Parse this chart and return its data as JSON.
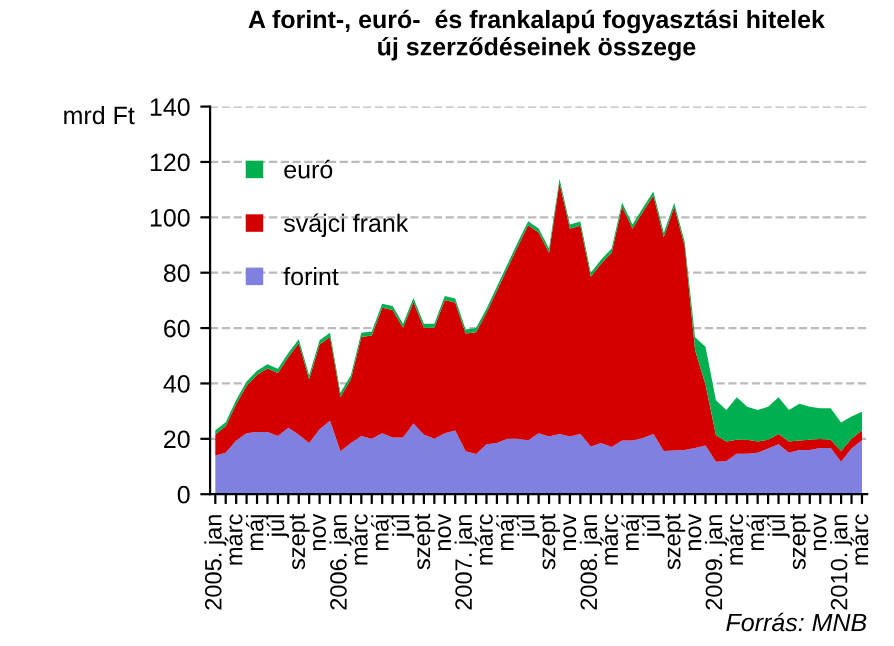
{
  "chart_data": {
    "type": "area",
    "stacked": true,
    "title": "A forint-, euró-  és frankalapú fogyasztási hitelek\núj szerződéseinek összege",
    "ylabel": "mrd Ft",
    "categories": [
      "2005. jan",
      null,
      "márc",
      null,
      "máj",
      null,
      "júl",
      null,
      "szept",
      null,
      "nov",
      null,
      "2006. jan",
      null,
      "márc",
      null,
      "máj",
      null,
      "júl",
      null,
      "szept",
      null,
      "nov",
      null,
      "2007. jan",
      null,
      "márc",
      null,
      "máj",
      null,
      "júl",
      null,
      "szept",
      null,
      "nov",
      null,
      "2008. jan",
      null,
      "márc",
      null,
      "máj",
      null,
      "júl",
      null,
      "szept",
      null,
      "nov",
      null,
      "2009. jan",
      null,
      "márc",
      null,
      "máj",
      null,
      "júl",
      null,
      "szept",
      null,
      "nov",
      null,
      "2010. jan",
      null,
      "márc"
    ],
    "series": [
      {
        "name": "forint",
        "color": "#8080e0",
        "values": [
          14,
          15,
          19.4,
          22,
          22.5,
          22.5,
          21,
          24,
          21.5,
          18.5,
          23.5,
          26.5,
          15.5,
          18.5,
          21,
          20,
          22,
          20.5,
          20.5,
          25.5,
          21.5,
          20,
          22,
          23,
          15.5,
          14.5,
          18,
          18.5,
          20,
          20,
          19.5,
          22,
          20.8,
          21.7,
          20.8,
          21.7,
          17.2,
          18.5,
          17,
          19.4,
          19.4,
          20.3,
          21.7,
          15.6,
          15.8,
          16,
          16.7,
          17.6,
          11.7,
          12,
          14.6,
          14.6,
          15,
          16.5,
          18,
          15,
          16,
          16,
          16.7,
          16.7,
          11.7,
          16.5,
          19.5
        ]
      },
      {
        "name": "svájci frank",
        "color": "#d40000",
        "values": [
          7.6,
          9.5,
          13.1,
          17.2,
          20.6,
          22.9,
          22.8,
          25.5,
          33,
          23,
          30.6,
          30.3,
          19.6,
          23,
          35.8,
          37.3,
          45.3,
          46,
          39.6,
          43.9,
          38.6,
          40.1,
          48.1,
          46.2,
          42.5,
          44,
          47.5,
          55,
          61.5,
          69.5,
          77.6,
          72.5,
          66.4,
          90.7,
          75.1,
          75.3,
          61.3,
          64.8,
          70.2,
          84.5,
          76.5,
          81.7,
          86.1,
          77.3,
          87.9,
          73.7,
          35.3,
          22,
          9.6,
          7,
          5.1,
          5.1,
          4,
          3.2,
          3.7,
          4,
          3.4,
          3.7,
          3.2,
          3,
          3.9,
          3.5,
          3.6
        ]
      },
      {
        "name": "euró",
        "color": "#00b050",
        "values": [
          1.5,
          1.5,
          1.5,
          1.5,
          1.5,
          1.5,
          1.5,
          1.5,
          1.5,
          1.5,
          1.5,
          1.5,
          1.5,
          1.5,
          1.5,
          1.5,
          1.5,
          1.5,
          1.5,
          1.5,
          1.5,
          1.5,
          1.5,
          1.5,
          1.5,
          1.5,
          1.5,
          1.5,
          1.5,
          1.5,
          1.5,
          1.5,
          1.5,
          1.5,
          1.5,
          1.5,
          1.5,
          1.5,
          1.5,
          1.5,
          1.5,
          1.5,
          1.5,
          1.5,
          1.5,
          1.5,
          4.7,
          13.7,
          12.6,
          11.4,
          15.3,
          11.9,
          11.4,
          11.9,
          13.3,
          11.4,
          13.3,
          11.9,
          11.1,
          11.3,
          10.3,
          8.1,
          6.7
        ]
      }
    ],
    "ylim": [
      0,
      140
    ],
    "yticks": [
      0,
      20,
      40,
      60,
      80,
      100,
      120,
      140
    ],
    "grid": "y",
    "legend": "top left",
    "annotations": [
      "Forrás: MNB"
    ]
  }
}
